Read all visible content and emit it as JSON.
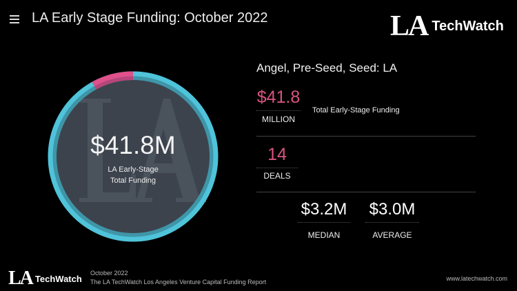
{
  "header": {
    "menu_icon": "hamburger-icon",
    "title": "LA Early Stage Funding: October 2022",
    "logo_la": "LA",
    "logo_tw": "TechWatch"
  },
  "ring": {
    "value": "$41.8M",
    "label_line1": "LA Early-Stage",
    "label_line2": "Total Funding",
    "watermark": "LA",
    "highlight_fraction": 0.08,
    "colors": {
      "ring": "#4fc3d9",
      "highlight": "#e0508a",
      "disc": "#3c434d"
    }
  },
  "panel": {
    "heading": "Angel, Pre-Seed, Seed: LA",
    "funding": {
      "value": "$41.8",
      "unit": "MILLION",
      "description": "Total Early-Stage Funding"
    },
    "deals": {
      "value": "14",
      "label": "DEALS"
    },
    "median": {
      "value": "$3.2M",
      "label": "MEDIAN"
    },
    "average": {
      "value": "$3.0M",
      "label": "AVERAGE"
    }
  },
  "footer": {
    "logo_la": "LA",
    "logo_tw": "TechWatch",
    "date": "October 2022",
    "report": "The LA TechWatch Los Angeles Venture Capital Funding Report",
    "url": "www.latechwatch.com"
  },
  "colors": {
    "accent": "#d8547f",
    "background": "#000000"
  }
}
